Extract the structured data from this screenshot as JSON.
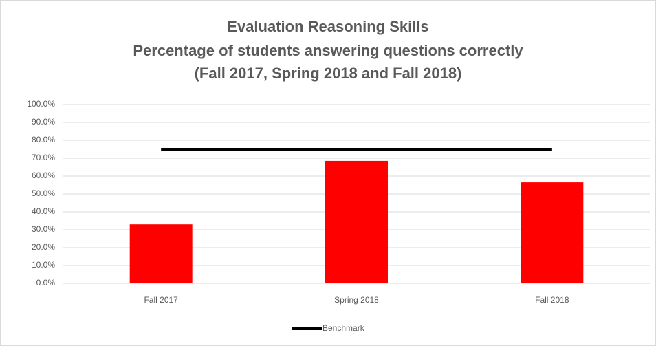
{
  "chart_data": {
    "type": "bar",
    "title": [
      "Evaluation Reasoning Skills",
      "Percentage of students answering questions correctly",
      "(Fall 2017, Spring 2018 and Fall 2018)"
    ],
    "categories": [
      "Fall 2017",
      "Spring 2018",
      "Fall 2018"
    ],
    "series": [
      {
        "type": "bar",
        "color": "#ff0000",
        "values": [
          33,
          68.5,
          56.5
        ]
      },
      {
        "type": "line",
        "name": "Benchmark",
        "color": "#000000",
        "values": [
          75,
          75,
          75
        ]
      }
    ],
    "ylim": [
      0,
      100
    ],
    "yticks": [
      {
        "value": 0,
        "label": "0.0%"
      },
      {
        "value": 10,
        "label": "10.0%"
      },
      {
        "value": 20,
        "label": "20.0%"
      },
      {
        "value": 30,
        "label": "30.0%"
      },
      {
        "value": 40,
        "label": "40.0%"
      },
      {
        "value": 50,
        "label": "50.0%"
      },
      {
        "value": 60,
        "label": "60.0%"
      },
      {
        "value": 70,
        "label": "70.0%"
      },
      {
        "value": 80,
        "label": "80.0%"
      },
      {
        "value": 90,
        "label": "90.0%"
      },
      {
        "value": 100,
        "label": "100.0%"
      }
    ],
    "grid": true,
    "legend": "bottom"
  }
}
